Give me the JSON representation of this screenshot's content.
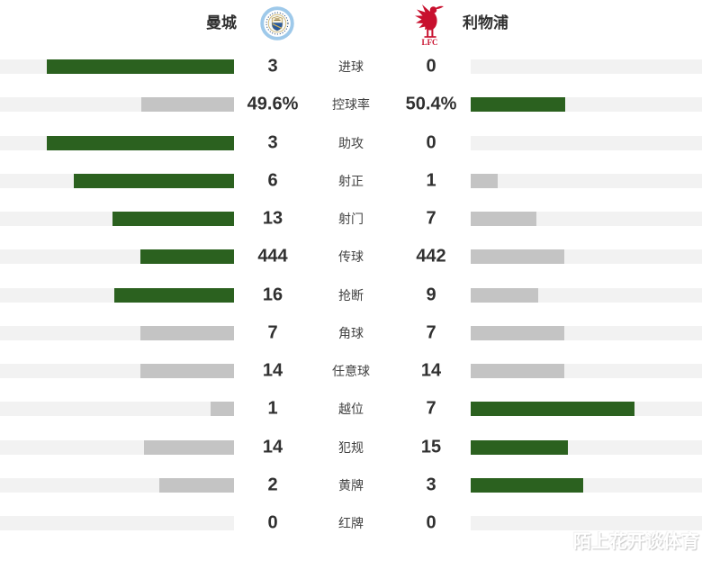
{
  "header": {
    "home_team": "曼城",
    "away_team": "利物浦",
    "away_logo_text": "LFC"
  },
  "watermark": "陌上花开谈体育",
  "colors": {
    "win_bar": "#2b611f",
    "lose_bar": "#c4c4c4",
    "bar_track": "#f2f2f2"
  },
  "chart_data": {
    "type": "bar",
    "orientation": "horizontal-paired-diverging-from-center",
    "categories": [
      "进球",
      "控球率",
      "助攻",
      "射正",
      "射门",
      "传球",
      "抢断",
      "角球",
      "任意球",
      "越位",
      "犯规",
      "黄牌",
      "红牌"
    ],
    "series": [
      {
        "name": "曼城",
        "side": "left",
        "values": [
          3,
          49.6,
          3,
          6,
          13,
          444,
          16,
          7,
          14,
          1,
          14,
          2,
          0
        ],
        "display": [
          "3",
          "49.6%",
          "3",
          "6",
          "13",
          "444",
          "16",
          "7",
          "14",
          "1",
          "14",
          "2",
          "0"
        ]
      },
      {
        "name": "利物浦",
        "side": "right",
        "values": [
          0,
          50.4,
          0,
          1,
          7,
          442,
          9,
          7,
          14,
          7,
          15,
          3,
          0
        ],
        "display": [
          "0",
          "50.4%",
          "0",
          "1",
          "7",
          "442",
          "9",
          "7",
          "14",
          "7",
          "15",
          "3",
          "0"
        ]
      }
    ],
    "bar_rule": "bar width = value share of row total (max 208px); higher value is green, lower or tied value is gray; zero shows empty track",
    "legend_position": "none",
    "grid": false
  }
}
